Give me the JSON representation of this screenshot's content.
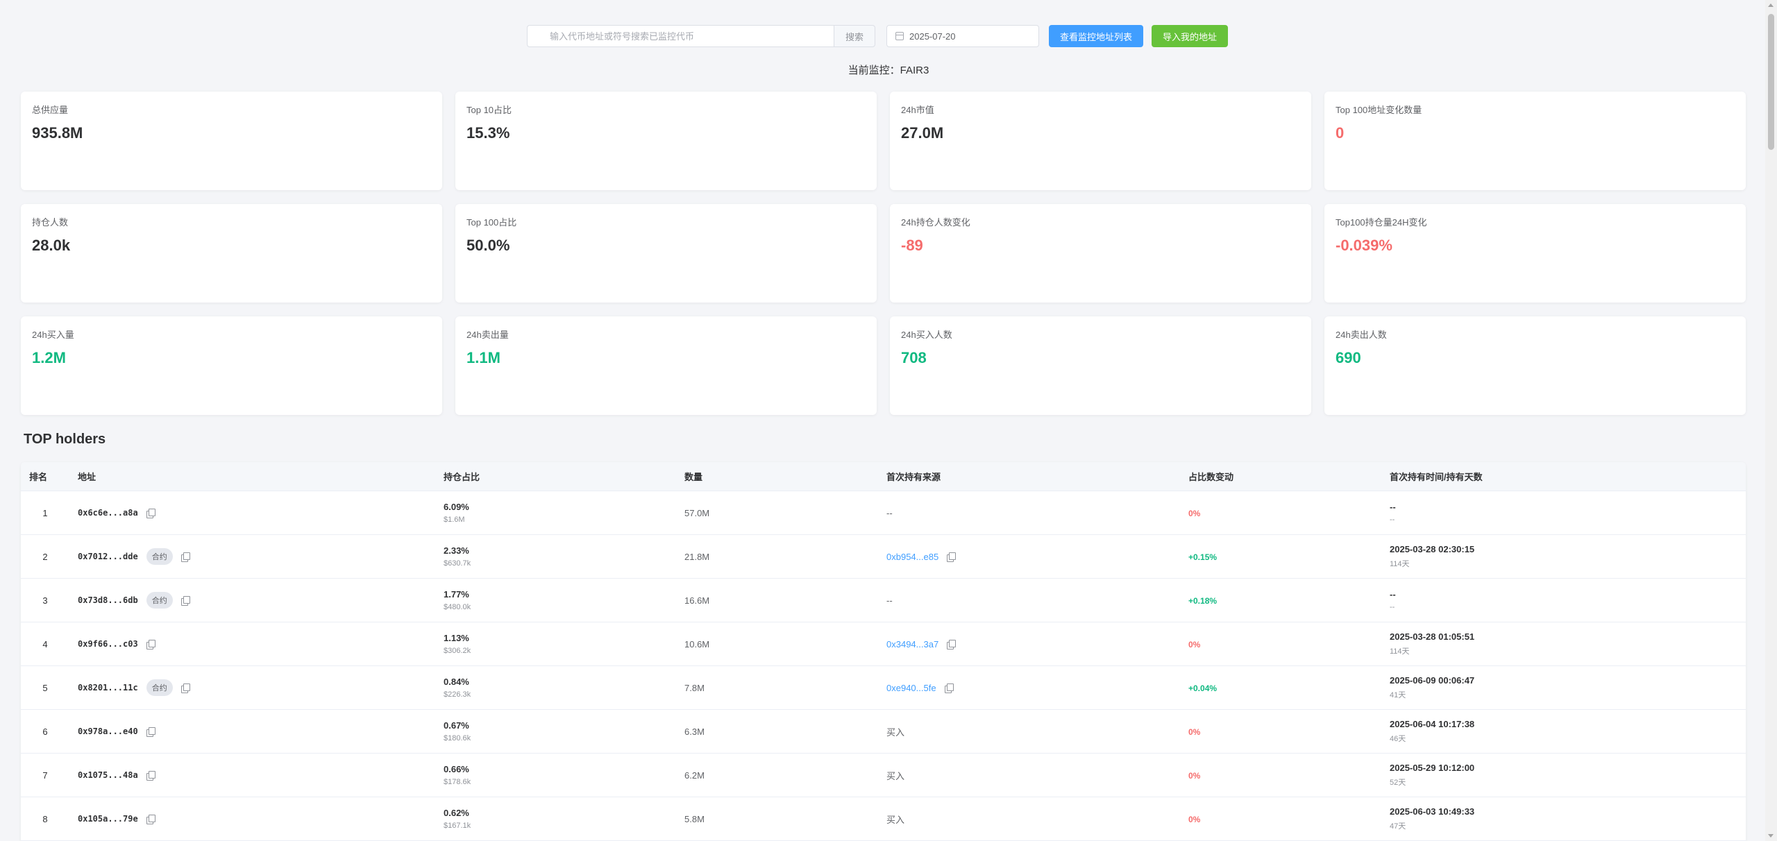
{
  "search": {
    "placeholder": "输入代币地址或符号搜索已监控代币",
    "button": "搜索"
  },
  "date": {
    "value": "2025-07-20"
  },
  "actions": {
    "view_list": "查看监控地址列表",
    "import": "导入我的地址"
  },
  "current": {
    "label": "当前监控：",
    "token": "FAIR3"
  },
  "cards": [
    {
      "label": "总供应量",
      "value": "935.8M",
      "tone": "default"
    },
    {
      "label": "Top 10占比",
      "value": "15.3%",
      "tone": "default"
    },
    {
      "label": "24h市值",
      "value": "27.0M",
      "tone": "default"
    },
    {
      "label": "Top 100地址变化数量",
      "value": "0",
      "tone": "red"
    },
    {
      "label": "持仓人数",
      "value": "28.0k",
      "tone": "default"
    },
    {
      "label": "Top 100占比",
      "value": "50.0%",
      "tone": "default"
    },
    {
      "label": "24h持仓人数变化",
      "value": "-89",
      "tone": "red"
    },
    {
      "label": "Top100持仓量24H变化",
      "value": "-0.039%",
      "tone": "red"
    },
    {
      "label": "24h买入量",
      "value": "1.2M",
      "tone": "green"
    },
    {
      "label": "24h卖出量",
      "value": "1.1M",
      "tone": "green"
    },
    {
      "label": "24h买入人数",
      "value": "708",
      "tone": "green"
    },
    {
      "label": "24h卖出人数",
      "value": "690",
      "tone": "green"
    }
  ],
  "holders": {
    "title": "TOP holders",
    "columns": [
      "排名",
      "地址",
      "持仓占比",
      "数量",
      "首次持有来源",
      "占比数变动",
      "首次持有时间/持有天数"
    ],
    "contract_tag": "合约",
    "rows": [
      {
        "rank": "1",
        "address": "0x6c6e...a8a",
        "contract": false,
        "pct": "6.09%",
        "usd": "$1.6M",
        "qty": "57.0M",
        "source": "--",
        "source_type": "none",
        "change": "0%",
        "change_tone": "red",
        "time": "--",
        "days": "--"
      },
      {
        "rank": "2",
        "address": "0x7012...dde",
        "contract": true,
        "pct": "2.33%",
        "usd": "$630.7k",
        "qty": "21.8M",
        "source": "0xb954...e85",
        "source_type": "link",
        "change": "+0.15%",
        "change_tone": "green",
        "time": "2025-03-28 02:30:15",
        "days": "114天"
      },
      {
        "rank": "3",
        "address": "0x73d8...6db",
        "contract": true,
        "pct": "1.77%",
        "usd": "$480.0k",
        "qty": "16.6M",
        "source": "--",
        "source_type": "none",
        "change": "+0.18%",
        "change_tone": "green",
        "time": "--",
        "days": "--"
      },
      {
        "rank": "4",
        "address": "0x9f66...c03",
        "contract": false,
        "pct": "1.13%",
        "usd": "$306.2k",
        "qty": "10.6M",
        "source": "0x3494...3a7",
        "source_type": "link",
        "change": "0%",
        "change_tone": "red",
        "time": "2025-03-28 01:05:51",
        "days": "114天"
      },
      {
        "rank": "5",
        "address": "0x8201...11c",
        "contract": true,
        "pct": "0.84%",
        "usd": "$226.3k",
        "qty": "7.8M",
        "source": "0xe940...5fe",
        "source_type": "link",
        "change": "+0.04%",
        "change_tone": "green",
        "time": "2025-06-09 00:06:47",
        "days": "41天"
      },
      {
        "rank": "6",
        "address": "0x978a...e40",
        "contract": false,
        "pct": "0.67%",
        "usd": "$180.6k",
        "qty": "6.3M",
        "source": "买入",
        "source_type": "text",
        "change": "0%",
        "change_tone": "red",
        "time": "2025-06-04 10:17:38",
        "days": "46天"
      },
      {
        "rank": "7",
        "address": "0x1075...48a",
        "contract": false,
        "pct": "0.66%",
        "usd": "$178.6k",
        "qty": "6.2M",
        "source": "买入",
        "source_type": "text",
        "change": "0%",
        "change_tone": "red",
        "time": "2025-05-29 10:12:00",
        "days": "52天"
      },
      {
        "rank": "8",
        "address": "0x105a...79e",
        "contract": false,
        "pct": "0.62%",
        "usd": "$167.1k",
        "qty": "5.8M",
        "source": "买入",
        "source_type": "text",
        "change": "0%",
        "change_tone": "red",
        "time": "2025-06-03 10:49:33",
        "days": "47天"
      }
    ]
  }
}
